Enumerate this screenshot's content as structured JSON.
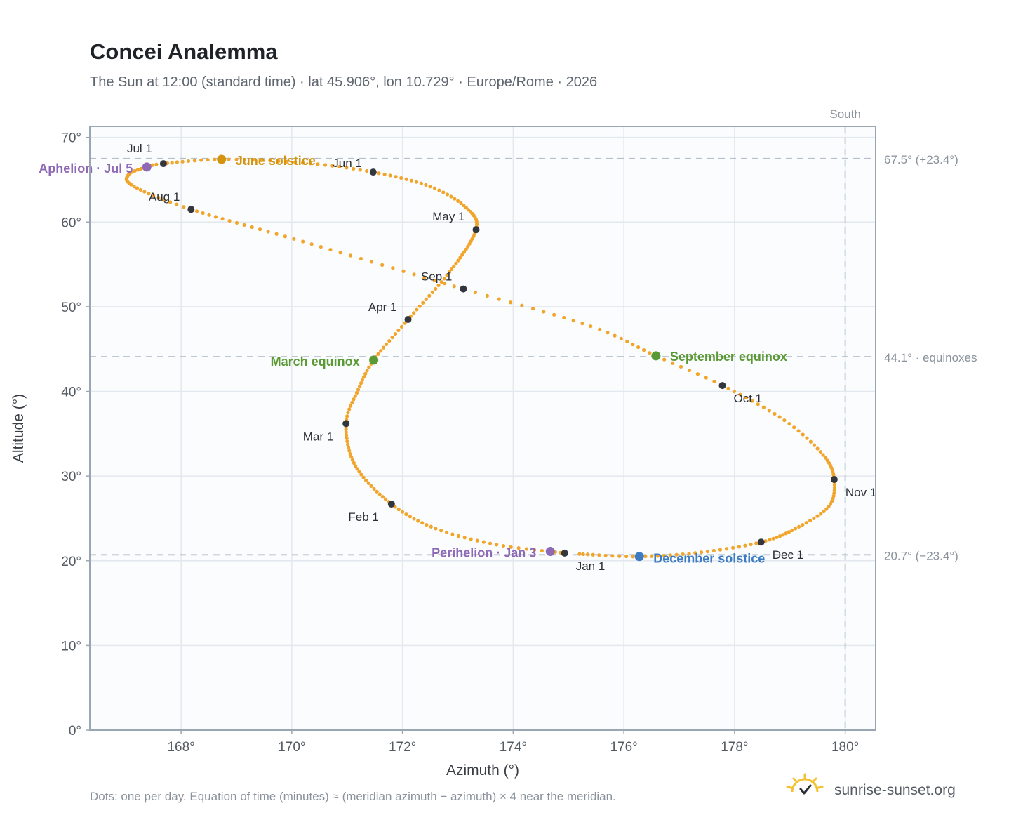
{
  "title": "Concei Analemma",
  "subtitle": "The Sun at 12:00 (standard time) · lat 45.906°, lon 10.729° · Europe/Rome · 2026",
  "footer_note": "Dots: one per day. Equation of time (minutes) ≈ (meridian azimuth − azimuth) × 4 near the meridian.",
  "brand": "sunrise-sunset.org",
  "colors": {
    "curve": "#f2a52b",
    "month_dot": "#33373d",
    "june_solstice": "#d4940f",
    "december_solstice": "#3d7cc2",
    "equinox": "#5a9a34",
    "apsis": "#8e69b5",
    "reference_line": "#b5c0cb",
    "plot_background": "#fafcfe",
    "grid": "#e3e8ee",
    "frame": "#9aa6b2"
  },
  "chart_data": {
    "type": "scatter",
    "xlabel": "Azimuth (°)",
    "ylabel": "Altitude (°)",
    "xlim": [
      166.35,
      180.55
    ],
    "ylim": [
      0,
      71.3
    ],
    "x_ticks": [
      168,
      170,
      172,
      174,
      176,
      178,
      180
    ],
    "x_tick_labels": [
      "168°",
      "170°",
      "172°",
      "174°",
      "176°",
      "178°",
      "180°"
    ],
    "y_ticks": [
      0,
      10,
      20,
      30,
      40,
      50,
      60,
      70
    ],
    "y_tick_labels": [
      "0°",
      "10°",
      "20°",
      "30°",
      "40°",
      "50°",
      "60°",
      "70°"
    ],
    "grid": true,
    "reference_lines": [
      {
        "axis": "y",
        "value": 67.5,
        "label": "67.5° (+23.4°)"
      },
      {
        "axis": "y",
        "value": 44.1,
        "label": "44.1° · equinoxes"
      },
      {
        "axis": "y",
        "value": 20.7,
        "label": "20.7° (−23.4°)"
      },
      {
        "axis": "x",
        "value": 180,
        "label": "South"
      }
    ],
    "months": [
      {
        "label": "Jan 1",
        "azimuth": 174.93,
        "altitude": 20.9
      },
      {
        "label": "Feb 1",
        "azimuth": 171.8,
        "altitude": 26.7
      },
      {
        "label": "Mar 1",
        "azimuth": 170.98,
        "altitude": 36.2
      },
      {
        "label": "Apr 1",
        "azimuth": 172.1,
        "altitude": 48.5
      },
      {
        "label": "May 1",
        "azimuth": 173.33,
        "altitude": 59.1
      },
      {
        "label": "Jun 1",
        "azimuth": 171.47,
        "altitude": 65.9
      },
      {
        "label": "Jul 1",
        "azimuth": 167.68,
        "altitude": 66.9
      },
      {
        "label": "Aug 1",
        "azimuth": 168.18,
        "altitude": 61.5
      },
      {
        "label": "Sep 1",
        "azimuth": 173.1,
        "altitude": 52.1
      },
      {
        "label": "Oct 1",
        "azimuth": 177.78,
        "altitude": 40.7
      },
      {
        "label": "Nov 1",
        "azimuth": 179.8,
        "altitude": 29.6
      },
      {
        "label": "Dec 1",
        "azimuth": 178.48,
        "altitude": 22.2
      }
    ],
    "events": [
      {
        "label": "June solstice",
        "azimuth": 168.73,
        "altitude": 67.4,
        "kind": "june_solstice"
      },
      {
        "label": "December solstice",
        "azimuth": 176.28,
        "altitude": 20.5,
        "kind": "december_solstice"
      },
      {
        "label": "March equinox",
        "azimuth": 171.48,
        "altitude": 43.7,
        "kind": "equinox"
      },
      {
        "label": "September equinox",
        "azimuth": 176.58,
        "altitude": 44.2,
        "kind": "equinox"
      },
      {
        "label": "Aphelion · Jul 5",
        "azimuth": 167.38,
        "altitude": 66.5,
        "kind": "apsis"
      },
      {
        "label": "Perihelion · Jan 3",
        "azimuth": 174.67,
        "altitude": 21.1,
        "kind": "apsis"
      }
    ],
    "path_keypoints_day_of_year": [
      {
        "day": 1,
        "azimuth": 174.93,
        "altitude": 20.9
      },
      {
        "day": 11,
        "azimuth": 173.7,
        "altitude": 21.9
      },
      {
        "day": 21,
        "azimuth": 172.6,
        "altitude": 23.8
      },
      {
        "day": 32,
        "azimuth": 171.8,
        "altitude": 26.7
      },
      {
        "day": 46,
        "azimuth": 171.15,
        "altitude": 31.2
      },
      {
        "day": 60,
        "azimuth": 170.98,
        "altitude": 36.2
      },
      {
        "day": 70,
        "azimuth": 171.2,
        "altitude": 40.2
      },
      {
        "day": 79,
        "azimuth": 171.48,
        "altitude": 43.7
      },
      {
        "day": 91,
        "azimuth": 172.1,
        "altitude": 48.5
      },
      {
        "day": 105,
        "azimuth": 172.85,
        "altitude": 54.1
      },
      {
        "day": 121,
        "azimuth": 173.33,
        "altitude": 59.1
      },
      {
        "day": 131,
        "azimuth": 173.15,
        "altitude": 61.7
      },
      {
        "day": 141,
        "azimuth": 172.5,
        "altitude": 64.2
      },
      {
        "day": 152,
        "azimuth": 171.47,
        "altitude": 65.9
      },
      {
        "day": 162,
        "azimuth": 170.2,
        "altitude": 67.0
      },
      {
        "day": 172,
        "azimuth": 168.73,
        "altitude": 67.4
      },
      {
        "day": 182,
        "azimuth": 167.68,
        "altitude": 66.9
      },
      {
        "day": 186,
        "azimuth": 167.38,
        "altitude": 66.5
      },
      {
        "day": 193,
        "azimuth": 167.05,
        "altitude": 65.6
      },
      {
        "day": 202,
        "azimuth": 167.15,
        "altitude": 64.2
      },
      {
        "day": 213,
        "azimuth": 168.18,
        "altitude": 61.5
      },
      {
        "day": 228,
        "azimuth": 170.2,
        "altitude": 57.7
      },
      {
        "day": 244,
        "azimuth": 173.1,
        "altitude": 52.1
      },
      {
        "day": 256,
        "azimuth": 175.4,
        "altitude": 47.7
      },
      {
        "day": 266,
        "azimuth": 176.58,
        "altitude": 44.2
      },
      {
        "day": 274,
        "azimuth": 177.78,
        "altitude": 40.7
      },
      {
        "day": 285,
        "azimuth": 178.9,
        "altitude": 36.6
      },
      {
        "day": 295,
        "azimuth": 179.6,
        "altitude": 32.5
      },
      {
        "day": 305,
        "azimuth": 179.8,
        "altitude": 29.6
      },
      {
        "day": 315,
        "azimuth": 179.7,
        "altitude": 26.4
      },
      {
        "day": 325,
        "azimuth": 179.1,
        "altitude": 23.8
      },
      {
        "day": 335,
        "azimuth": 178.48,
        "altitude": 22.2
      },
      {
        "day": 345,
        "azimuth": 177.4,
        "altitude": 21.0
      },
      {
        "day": 355,
        "azimuth": 176.28,
        "altitude": 20.5
      },
      {
        "day": 365,
        "azimuth": 175.2,
        "altitude": 20.8
      }
    ]
  }
}
